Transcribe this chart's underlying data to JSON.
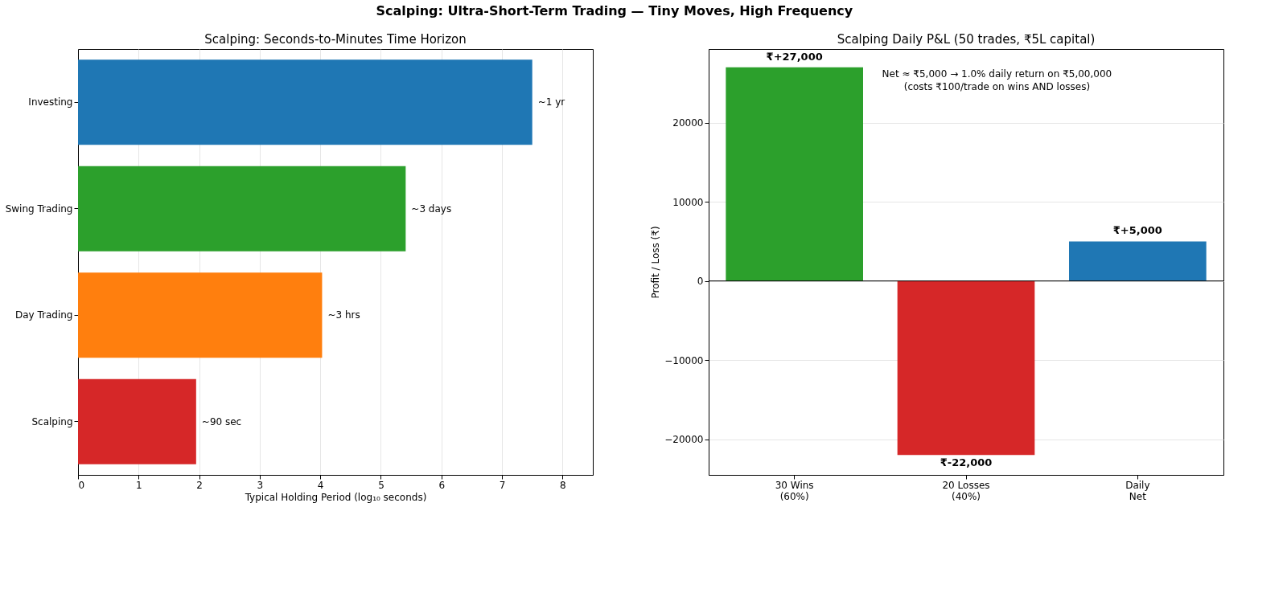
{
  "chart_data": [
    {
      "type": "other",
      "title": "Scalping: Ultra-Short-Term Trading — Tiny Moves, High Frequency"
    },
    {
      "type": "bar",
      "orientation": "horizontal",
      "title": "Scalping: Seconds-to-Minutes Time Horizon",
      "xlabel": "Typical Holding Period  (log₁₀ seconds)",
      "categories": [
        "Investing",
        "Swing Trading",
        "Day Trading",
        "Scalping"
      ],
      "values": [
        7.5,
        5.41,
        4.03,
        1.95
      ],
      "colors": [
        "#1f77b4",
        "#2ca02c",
        "#ff7f0e",
        "#d62728"
      ],
      "annotations": [
        {
          "text": "~1 yr",
          "x": 7.5,
          "y": "Investing"
        },
        {
          "text": "~3 days",
          "x": 5.41,
          "y": "Swing Trading"
        },
        {
          "text": "~3 hrs",
          "x": 4.03,
          "y": "Day Trading"
        },
        {
          "text": "~90 sec",
          "x": 1.95,
          "y": "Scalping"
        }
      ],
      "xlim": [
        0,
        8.5
      ],
      "xticks": [
        0,
        1,
        2,
        3,
        4,
        5,
        6,
        7,
        8
      ],
      "grid": "x"
    },
    {
      "type": "bar",
      "title": "Scalping Daily P&L  (50 trades, ₹5L capital)",
      "ylabel": "Profit / Loss  (₹)",
      "categories": [
        "30 Wins\n(60%)",
        "20 Losses\n(40%)",
        "Daily\nNet"
      ],
      "values": [
        27000,
        -22000,
        5000
      ],
      "colors": [
        "#2ca02c",
        "#d62728",
        "#1f77b4"
      ],
      "value_labels": [
        "₹+27,000",
        "₹-22,000",
        "₹+5,000"
      ],
      "ylim": [
        -24500,
        29300
      ],
      "yticks": [
        -20000,
        -10000,
        0,
        10000,
        20000
      ],
      "grid": "y",
      "ref_lines": [
        {
          "axis": "y",
          "value": 0,
          "color": "#000000"
        }
      ],
      "annotations": [
        "Net ≈ ₹5,000  →  1.0% daily return on ₹5,00,000\n(costs ₹100/trade on wins AND losses)"
      ]
    }
  ]
}
